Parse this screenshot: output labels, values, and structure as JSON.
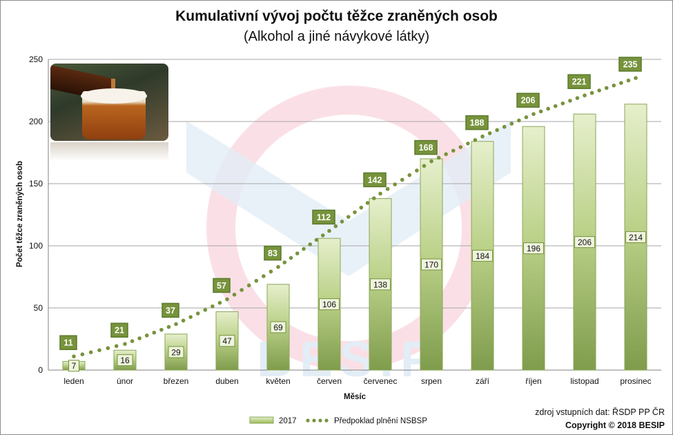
{
  "chart_data": {
    "type": "bar",
    "title": "Kumulativní vývoj počtu těžce zraněných osob",
    "subtitle": "(Alkohol a jiné návykové látky)",
    "xlabel": "Měsíc",
    "ylabel": "Počet těžce zraněných osob",
    "ylim": [
      0,
      250
    ],
    "yticks": [
      0,
      50,
      100,
      150,
      200,
      250
    ],
    "grid": true,
    "legend_position": "bottom",
    "categories": [
      "leden",
      "únor",
      "březen",
      "duben",
      "květen",
      "červen",
      "červenec",
      "srpen",
      "září",
      "říjen",
      "listopad",
      "prosinec"
    ],
    "series": [
      {
        "name": "2017",
        "type": "bar",
        "values": [
          7,
          16,
          29,
          47,
          69,
          106,
          138,
          170,
          184,
          196,
          206,
          214
        ],
        "color": "#c3d69b"
      },
      {
        "name": "Předpoklad plnění NSBSP",
        "type": "line-dotted",
        "values": [
          11,
          21,
          37,
          57,
          83,
          112,
          142,
          168,
          188,
          206,
          221,
          235
        ],
        "color": "#77933c"
      }
    ]
  },
  "source_text": "zdroj vstupních dat: ŘSDP PP ČR",
  "copyright_text": "Copyright © 2018 BESIP",
  "watermark_text": "BESIP",
  "colors": {
    "bar_top": "#e4edc9",
    "bar_bottom": "#8aa659",
    "bar_border": "#9bbb59",
    "forecast": "#77933c",
    "grid": "#a6a6a6"
  },
  "image": "beer-glass-photo"
}
